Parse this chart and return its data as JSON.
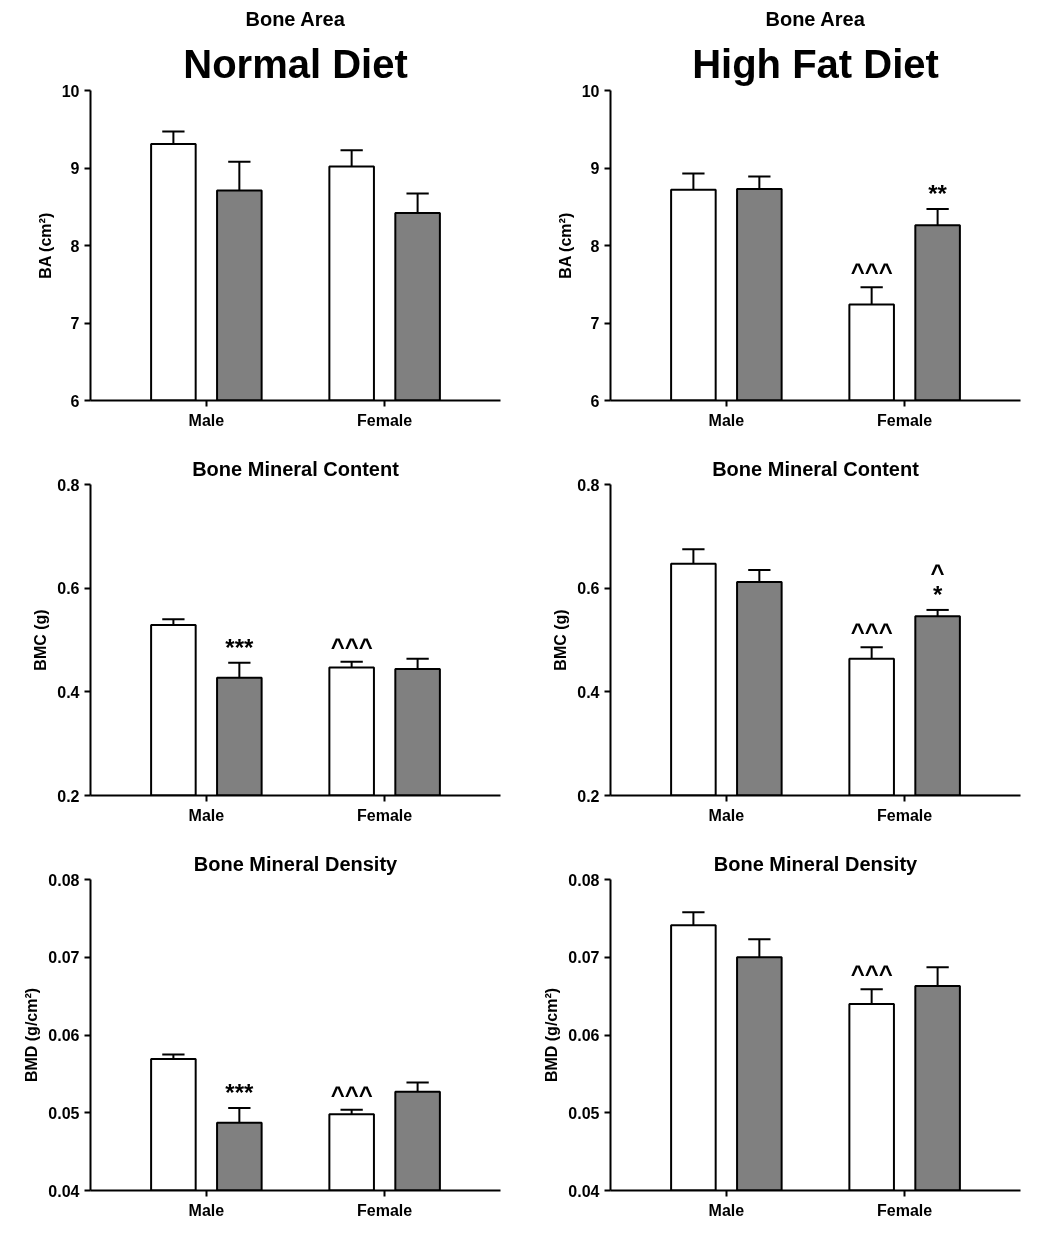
{
  "chart_data": [
    {
      "type": "bar",
      "title": "Bone Area",
      "ylabel": "BA (cm²)",
      "categories": [
        "Male",
        "Female"
      ],
      "ylim": [
        6,
        10
      ],
      "yticks": [
        6,
        7,
        8,
        9,
        10
      ],
      "series": [
        {
          "color": "#ffffff",
          "values": [
            9.31,
            9.02
          ],
          "errors": [
            0.16,
            0.21
          ]
        },
        {
          "color": "#808080",
          "values": [
            8.71,
            8.42
          ],
          "errors": [
            0.37,
            0.25
          ]
        }
      ],
      "annotations": [
        "Normal Diet"
      ]
    },
    {
      "type": "bar",
      "title": "Bone Area",
      "ylabel": "BA (cm²)",
      "categories": [
        "Male",
        "Female"
      ],
      "ylim": [
        6,
        10
      ],
      "yticks": [
        6,
        7,
        8,
        9,
        10
      ],
      "series": [
        {
          "color": "#ffffff",
          "values": [
            8.72,
            7.24
          ],
          "errors": [
            0.21,
            0.22
          ],
          "value_labels": [
            null,
            "^^^"
          ]
        },
        {
          "color": "#808080",
          "values": [
            8.73,
            8.26
          ],
          "errors": [
            0.16,
            0.21
          ],
          "value_labels": [
            null,
            "**"
          ]
        }
      ],
      "annotations": [
        "High Fat Diet"
      ]
    },
    {
      "type": "bar",
      "title": "Bone Mineral Content",
      "ylabel": "BMC (g)",
      "categories": [
        "Male",
        "Female"
      ],
      "ylim": [
        0.2,
        0.8
      ],
      "yticks": [
        0.2,
        0.4,
        0.6,
        0.8
      ],
      "series": [
        {
          "color": "#ffffff",
          "values": [
            0.529,
            0.447
          ],
          "errors": [
            0.011,
            0.011
          ],
          "value_labels": [
            null,
            "^^^"
          ]
        },
        {
          "color": "#808080",
          "values": [
            0.427,
            0.444
          ],
          "errors": [
            0.029,
            0.02
          ],
          "value_labels": [
            "***",
            null
          ]
        }
      ]
    },
    {
      "type": "bar",
      "title": "Bone Mineral Content",
      "ylabel": "BMC (g)",
      "categories": [
        "Male",
        "Female"
      ],
      "ylim": [
        0.2,
        0.8
      ],
      "yticks": [
        0.2,
        0.4,
        0.6,
        0.8
      ],
      "series": [
        {
          "color": "#ffffff",
          "values": [
            0.647,
            0.464
          ],
          "errors": [
            0.028,
            0.022
          ],
          "value_labels": [
            null,
            "^^^"
          ]
        },
        {
          "color": "#808080",
          "values": [
            0.612,
            0.546
          ],
          "errors": [
            0.023,
            0.012
          ],
          "value_labels": [
            null,
            "^\n*"
          ]
        }
      ]
    },
    {
      "type": "bar",
      "title": "Bone Mineral Density",
      "ylabel": "BMD (g/cm²)",
      "categories": [
        "Male",
        "Female"
      ],
      "ylim": [
        0.04,
        0.08
      ],
      "yticks": [
        0.04,
        0.05,
        0.06,
        0.07,
        0.08
      ],
      "series": [
        {
          "color": "#ffffff",
          "values": [
            0.0569,
            0.0498
          ],
          "errors": [
            0.0006,
            0.0006
          ],
          "value_labels": [
            null,
            "^^^"
          ]
        },
        {
          "color": "#808080",
          "values": [
            0.0487,
            0.0527
          ],
          "errors": [
            0.0019,
            0.0012
          ],
          "value_labels": [
            "***",
            null
          ]
        }
      ]
    },
    {
      "type": "bar",
      "title": "Bone Mineral Density",
      "ylabel": "BMD (g/cm²)",
      "categories": [
        "Male",
        "Female"
      ],
      "ylim": [
        0.04,
        0.08
      ],
      "yticks": [
        0.04,
        0.05,
        0.06,
        0.07,
        0.08
      ],
      "series": [
        {
          "color": "#ffffff",
          "values": [
            0.0741,
            0.064
          ],
          "errors": [
            0.0017,
            0.0019
          ],
          "value_labels": [
            null,
            "^^^"
          ]
        },
        {
          "color": "#808080",
          "values": [
            0.07,
            0.0663
          ],
          "errors": [
            0.0023,
            0.0024
          ]
        }
      ]
    }
  ]
}
